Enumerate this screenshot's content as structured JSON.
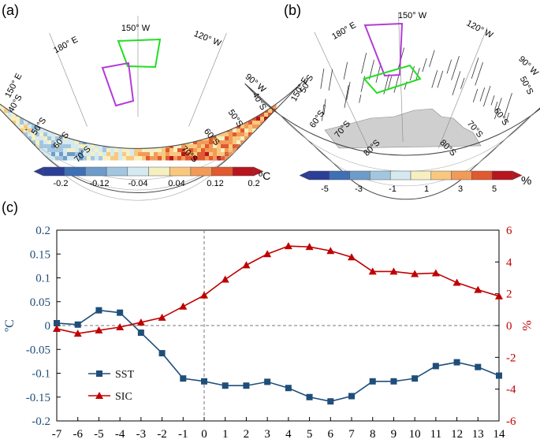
{
  "panels": {
    "a": {
      "tag": "(a)",
      "lon_labels": [
        "180° E",
        "150° W",
        "120° W",
        "90° W",
        "150° E"
      ],
      "lat_labels": [
        "40°S",
        "50°S",
        "60°S",
        "70°S",
        "70°S",
        "60°S",
        "50°S",
        "40°S"
      ],
      "colorbar": {
        "ticks": [
          "-0.2",
          "-0.12",
          "-0.04",
          "0.04",
          "0.12",
          "0.2"
        ],
        "unit": "ºC"
      }
    },
    "b": {
      "tag": "(b)",
      "lon_labels": [
        "180° E",
        "150° W",
        "120° W",
        "90° W",
        "150° E"
      ],
      "lat_labels": [
        "50°S",
        "60°S",
        "70°S",
        "80°S",
        "80°S",
        "70°S",
        "60°S",
        "50°S"
      ],
      "colorbar": {
        "ticks": [
          "-5",
          "-3",
          "-1",
          "1",
          "3",
          "5"
        ],
        "unit": "%"
      }
    },
    "c": {
      "tag": "(c)"
    }
  },
  "colors": {
    "sst": "#1f4e79",
    "sic": "#c00000",
    "palette": [
      "#2b3f97",
      "#3f6fb5",
      "#6d9ccb",
      "#a3c6e0",
      "#d5eaf0",
      "#f6efc1",
      "#f9c87f",
      "#f29a58",
      "#e1592f",
      "#b8151e"
    ]
  },
  "chart_data": {
    "type": "line",
    "x": [
      -7,
      -6,
      -5,
      -4,
      -3,
      -2,
      -1,
      0,
      1,
      2,
      3,
      4,
      5,
      6,
      7,
      8,
      9,
      10,
      11,
      12,
      13,
      14
    ],
    "series": [
      {
        "name": "SST",
        "axis": "left",
        "marker": "square",
        "values": [
          0.005,
          0.002,
          0.032,
          0.027,
          -0.015,
          -0.058,
          -0.111,
          -0.117,
          -0.126,
          -0.126,
          -0.118,
          -0.131,
          -0.15,
          -0.159,
          -0.148,
          -0.117,
          -0.117,
          -0.111,
          -0.085,
          -0.077,
          -0.087,
          -0.105
        ]
      },
      {
        "name": "SIC",
        "axis": "right",
        "marker": "triangle",
        "values": [
          -0.2,
          -0.5,
          -0.3,
          -0.1,
          0.2,
          0.5,
          1.2,
          1.9,
          2.9,
          3.8,
          4.5,
          5.0,
          4.95,
          4.7,
          4.3,
          3.4,
          3.4,
          3.25,
          3.3,
          2.7,
          2.25,
          1.85
        ]
      }
    ],
    "y_left": {
      "label": "ºC",
      "ylim": [
        -0.2,
        0.2
      ],
      "ticks": [
        "0.2",
        "0.15",
        "0.1",
        "0.05",
        "0",
        "-0.05",
        "-0.1",
        "-0.15",
        "-0.2"
      ]
    },
    "y_right": {
      "label": "%",
      "ylim": [
        -6,
        6
      ],
      "ticks": [
        "6",
        "4",
        "2",
        "0",
        "-2",
        "-4",
        "-6"
      ]
    },
    "x_ticks": [
      "-7",
      "-6",
      "-5",
      "-4",
      "-3",
      "-2",
      "-1",
      "0",
      "1",
      "2",
      "3",
      "4",
      "5",
      "6",
      "7",
      "8",
      "9",
      "10",
      "11",
      "12",
      "13",
      "14"
    ],
    "legend": {
      "placement": "bottom-left",
      "entries": [
        "SST",
        "SIC"
      ]
    }
  }
}
